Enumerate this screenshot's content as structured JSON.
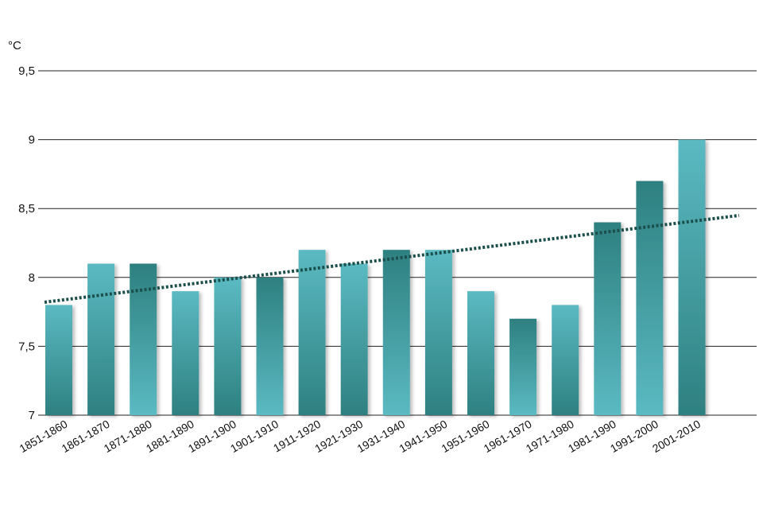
{
  "chart_data": {
    "type": "bar",
    "unit_label": "°C",
    "categories": [
      "1851-1860",
      "1861-1870",
      "1871-1880",
      "1881-1890",
      "1891-1900",
      "1901-1910",
      "1911-1920",
      "1921-1930",
      "1931-1940",
      "1941-1950",
      "1951-1960",
      "1961-1970",
      "1971-1980",
      "1981-1990",
      "1991-2000",
      "2001-2010"
    ],
    "values": [
      7.8,
      8.1,
      8.1,
      7.9,
      8.0,
      8.0,
      8.2,
      8.1,
      8.2,
      8.2,
      7.9,
      7.7,
      7.8,
      8.4,
      8.7,
      9.0
    ],
    "ylim": [
      7,
      9.5
    ],
    "yticks": [
      {
        "value": 7,
        "label": "7"
      },
      {
        "value": 7.5,
        "label": "7,5"
      },
      {
        "value": 8,
        "label": "8"
      },
      {
        "value": 8.5,
        "label": "8,5"
      },
      {
        "value": 9,
        "label": "9"
      },
      {
        "value": 9.5,
        "label": "9,5"
      }
    ],
    "trendline": {
      "type": "linear",
      "start": 7.82,
      "end": 8.45,
      "style": "dotted"
    },
    "grid": true,
    "colors": {
      "bar_light": "#5bbac2",
      "bar_dark": "#2e8080",
      "trend": "#1a4f4c",
      "grid": "#222222"
    }
  }
}
